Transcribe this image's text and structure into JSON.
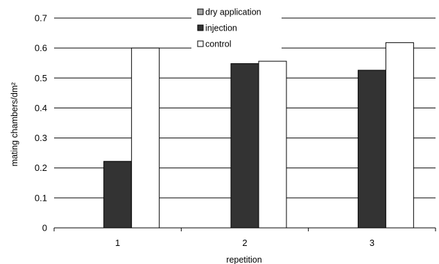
{
  "chart_data": {
    "type": "bar",
    "categories": [
      "1",
      "2",
      "3"
    ],
    "series": [
      {
        "name": "dry application",
        "values": [
          0,
          0,
          0
        ],
        "color": "#a6a6a6"
      },
      {
        "name": "injection",
        "values": [
          0.222,
          0.548,
          0.526
        ],
        "color": "#333333"
      },
      {
        "name": "control",
        "values": [
          0.6,
          0.556,
          0.618
        ],
        "color": "#ffffff"
      }
    ],
    "xlabel": "repetition",
    "ylabel": "mating chambers/dm²",
    "ylim": [
      0,
      0.7
    ],
    "yticks": [
      "0",
      "0.1",
      "0.2",
      "0.3",
      "0.4",
      "0.5",
      "0.6",
      "0.7"
    ],
    "grid": true,
    "legend_position": "top-center"
  }
}
